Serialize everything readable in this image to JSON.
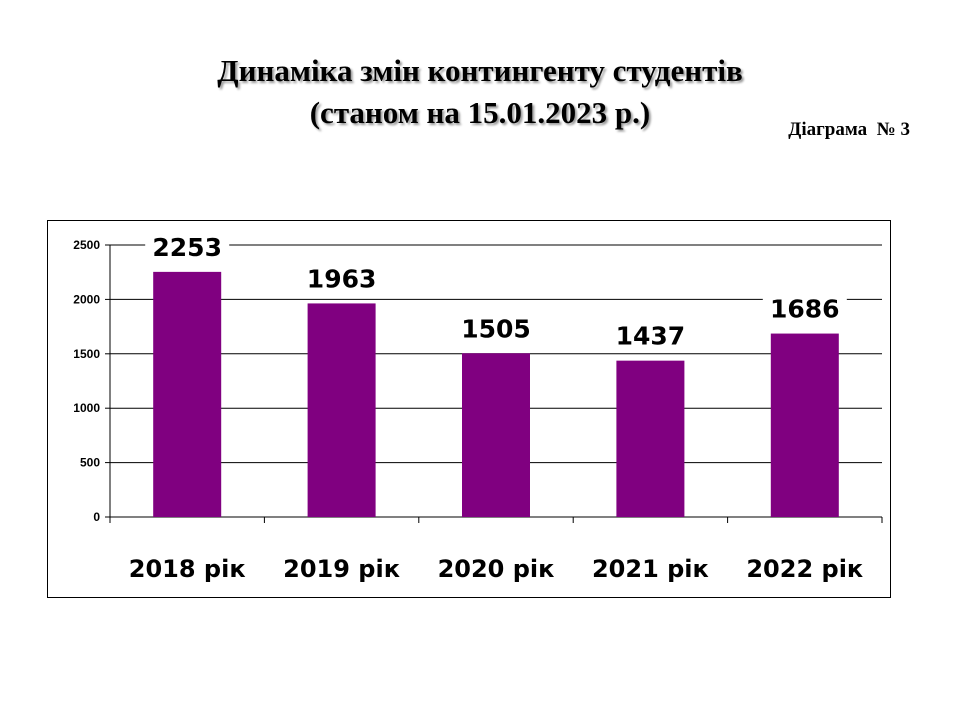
{
  "title": {
    "line1": "Динаміка змін контингенту студентів",
    "line2": "(станом  на 15.01.2023 р.)"
  },
  "diagram_label": "Діаграма  № 3",
  "colors": {
    "bar": "#800080",
    "grid": "#000000",
    "text": "#000000"
  },
  "chart_data": {
    "type": "bar",
    "categories": [
      "2018 рік",
      "2019 рік",
      "2020 рік",
      "2021 рік",
      "2022 рік"
    ],
    "values": [
      2253,
      1963,
      1505,
      1437,
      1686
    ],
    "data_labels": [
      "2253",
      "1963",
      "1505",
      "1437",
      "1686"
    ],
    "yticks": [
      0,
      500,
      1000,
      1500,
      2000,
      2500
    ],
    "ylim": [
      0,
      2500
    ],
    "grid": true,
    "legend": "none"
  }
}
